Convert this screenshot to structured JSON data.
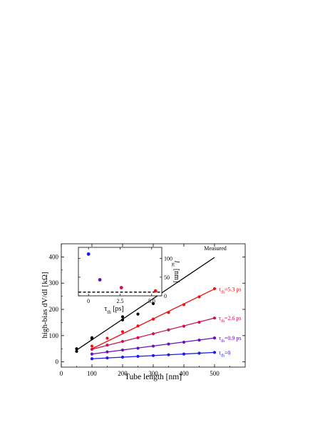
{
  "chart_data": [
    {
      "type": "scatter",
      "xlabel": "Tube length [nm]",
      "ylabel": "high-bias  dV/dI  [kΩ]",
      "xlim": [
        0,
        600
      ],
      "ylim": [
        -20,
        450
      ],
      "x_ticks": [
        "0",
        "100",
        "200",
        "300",
        "400",
        "500"
      ],
      "y_ticks": [
        "0",
        "100",
        "200",
        "300",
        "400"
      ],
      "grid": false,
      "series": [
        {
          "name": "Measured",
          "color": "#000000",
          "points": [
            [
              50,
              50
            ],
            [
              50,
              40
            ],
            [
              100,
              92
            ],
            [
              100,
              88
            ],
            [
              200,
              172
            ],
            [
              200,
              160
            ],
            [
              250,
              182
            ],
            [
              300,
              222
            ]
          ],
          "fit": [
            [
              50,
              45
            ],
            [
              500,
              398
            ]
          ]
        },
        {
          "name": "τth=5.3 ps",
          "color": "#ee1111",
          "points": [
            [
              100,
              60
            ],
            [
              150,
              90
            ],
            [
              200,
              115
            ],
            [
              250,
              137
            ],
            [
              300,
              163
            ],
            [
              350,
              188
            ],
            [
              400,
              218
            ],
            [
              450,
              248
            ],
            [
              500,
              279
            ]
          ],
          "fit": [
            [
              100,
              50
            ],
            [
              500,
              278
            ]
          ]
        },
        {
          "name": "τth=2.6 ps",
          "color": "#cc1155",
          "points": [
            [
              100,
              48
            ],
            [
              150,
              64
            ],
            [
              200,
              78
            ],
            [
              250,
              92
            ],
            [
              300,
              107
            ],
            [
              350,
              122
            ],
            [
              400,
              136
            ],
            [
              450,
              151
            ],
            [
              500,
              167
            ]
          ],
          "fit": [
            [
              100,
              48
            ],
            [
              500,
              167
            ]
          ]
        },
        {
          "name": "τth=0.9 ps",
          "color": "#6611bb",
          "points": [
            [
              100,
              30
            ],
            [
              150,
              38
            ],
            [
              200,
              45
            ],
            [
              250,
              52
            ],
            [
              300,
              60
            ],
            [
              350,
              68
            ],
            [
              400,
              75
            ],
            [
              450,
              83
            ],
            [
              500,
              91
            ]
          ],
          "fit": [
            [
              100,
              30
            ],
            [
              500,
              91
            ]
          ]
        },
        {
          "name": "τth=0",
          "color": "#1a1aee",
          "points": [
            [
              100,
              12
            ],
            [
              150,
              15
            ],
            [
              200,
              18
            ],
            [
              250,
              21
            ],
            [
              300,
              24
            ],
            [
              350,
              27
            ],
            [
              400,
              30
            ],
            [
              450,
              33
            ],
            [
              500,
              36
            ]
          ],
          "fit": [
            [
              100,
              12
            ],
            [
              500,
              36
            ]
          ]
        }
      ]
    },
    {
      "type": "scatter",
      "xlabel": "τth  [ps]",
      "ylabel": "lsc [nm]",
      "xlim": [
        -0.8,
        5.8
      ],
      "ylim": [
        0,
        130
      ],
      "x_ticks": [
        "0",
        "2.5",
        "5.0"
      ],
      "y_ticks": [
        "0",
        "50",
        "100"
      ],
      "reference_line": {
        "value": 10,
        "style": "dashed"
      },
      "points": [
        {
          "x": 0,
          "y": 112,
          "color": "#1a1aee"
        },
        {
          "x": 0.9,
          "y": 43,
          "color": "#6611bb"
        },
        {
          "x": 2.6,
          "y": 22,
          "color": "#cc1155"
        },
        {
          "x": 5.3,
          "y": 13,
          "color": "#ee1111"
        }
      ]
    }
  ]
}
